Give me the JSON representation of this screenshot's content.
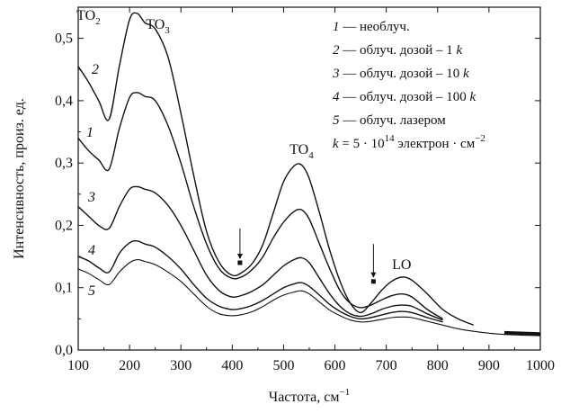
{
  "chart_data": {
    "type": "line",
    "title": "",
    "xlabel": "Частота, см",
    "xlabel_sup": "−1",
    "ylabel": "Интенсивность, произ. ед.",
    "xlim": [
      100,
      1000
    ],
    "ylim": [
      0.0,
      0.55
    ],
    "xticks": [
      100,
      200,
      300,
      400,
      500,
      600,
      700,
      800,
      900,
      1000
    ],
    "xtick_labels": [
      "100",
      "200",
      "300",
      "400",
      "500",
      "600",
      "700",
      "800",
      "900",
      "1000"
    ],
    "yticks": [
      0.0,
      0.1,
      0.2,
      0.3,
      0.4,
      0.5
    ],
    "ytick_labels": [
      "0,0",
      "0,1",
      "0,2",
      "0,3",
      "0,4",
      "0,5"
    ],
    "grid": false,
    "legend_position": "top-right",
    "series": [
      {
        "name": "необлуч.",
        "label": "1",
        "x": [
          100,
          120,
          140,
          160,
          180,
          200,
          215,
          230,
          250,
          275,
          300,
          325,
          350,
          375,
          400,
          420,
          440,
          460,
          480,
          500,
          520,
          535,
          550,
          570,
          590,
          610,
          630,
          650,
          670,
          690,
          710,
          730,
          750,
          780,
          810
        ],
        "y": [
          0.34,
          0.32,
          0.305,
          0.29,
          0.355,
          0.405,
          0.413,
          0.407,
          0.4,
          0.36,
          0.3,
          0.23,
          0.17,
          0.13,
          0.115,
          0.118,
          0.13,
          0.15,
          0.18,
          0.205,
          0.222,
          0.225,
          0.21,
          0.17,
          0.13,
          0.095,
          0.075,
          0.068,
          0.072,
          0.08,
          0.087,
          0.09,
          0.085,
          0.065,
          0.05
        ]
      },
      {
        "name": "облуч. дозой – 1 k",
        "label": "2",
        "x": [
          100,
          120,
          140,
          160,
          180,
          200,
          215,
          230,
          250,
          275,
          300,
          325,
          350,
          375,
          400,
          420,
          440,
          460,
          480,
          500,
          520,
          535,
          550,
          570,
          590,
          610,
          630,
          650,
          670,
          690,
          710,
          730,
          750,
          780,
          810,
          840,
          870
        ],
        "y": [
          0.455,
          0.43,
          0.4,
          0.37,
          0.455,
          0.53,
          0.54,
          0.525,
          0.515,
          0.47,
          0.38,
          0.28,
          0.19,
          0.14,
          0.12,
          0.125,
          0.14,
          0.17,
          0.22,
          0.27,
          0.295,
          0.297,
          0.275,
          0.22,
          0.16,
          0.11,
          0.075,
          0.06,
          0.075,
          0.095,
          0.11,
          0.117,
          0.112,
          0.09,
          0.065,
          0.05,
          0.04
        ]
      },
      {
        "name": "облуч. дозой – 10 k",
        "label": "3",
        "x": [
          100,
          120,
          140,
          160,
          180,
          200,
          215,
          230,
          250,
          275,
          300,
          325,
          350,
          375,
          400,
          420,
          440,
          460,
          480,
          500,
          520,
          535,
          550,
          570,
          590,
          610,
          630,
          650,
          670,
          690,
          710,
          730,
          750,
          780,
          810
        ],
        "y": [
          0.23,
          0.215,
          0.2,
          0.195,
          0.23,
          0.258,
          0.262,
          0.258,
          0.252,
          0.232,
          0.2,
          0.16,
          0.12,
          0.095,
          0.085,
          0.088,
          0.095,
          0.105,
          0.12,
          0.135,
          0.145,
          0.148,
          0.14,
          0.115,
          0.09,
          0.07,
          0.058,
          0.054,
          0.058,
          0.065,
          0.07,
          0.072,
          0.07,
          0.058,
          0.048
        ]
      },
      {
        "name": "облуч. дозой – 100 k",
        "label": "4",
        "x": [
          100,
          120,
          140,
          160,
          180,
          200,
          215,
          230,
          250,
          275,
          300,
          325,
          350,
          375,
          400,
          420,
          440,
          460,
          480,
          500,
          520,
          535,
          550,
          570,
          590,
          610,
          630,
          650,
          670,
          690,
          710,
          730,
          750,
          780,
          810
        ],
        "y": [
          0.15,
          0.143,
          0.132,
          0.125,
          0.155,
          0.172,
          0.175,
          0.17,
          0.165,
          0.15,
          0.13,
          0.105,
          0.083,
          0.07,
          0.065,
          0.067,
          0.072,
          0.08,
          0.09,
          0.1,
          0.106,
          0.108,
          0.102,
          0.088,
          0.073,
          0.062,
          0.054,
          0.05,
          0.052,
          0.056,
          0.06,
          0.062,
          0.06,
          0.052,
          0.045
        ]
      },
      {
        "name": "облуч. лазером",
        "label": "5",
        "x": [
          100,
          120,
          140,
          160,
          180,
          200,
          215,
          230,
          250,
          275,
          300,
          325,
          350,
          375,
          400,
          420,
          440,
          460,
          480,
          500,
          520,
          535,
          550,
          570,
          590,
          610,
          630,
          650,
          670,
          690,
          710,
          730,
          750,
          780,
          810,
          840,
          870,
          900,
          930,
          960,
          1000
        ],
        "y": [
          0.13,
          0.123,
          0.113,
          0.105,
          0.125,
          0.14,
          0.145,
          0.142,
          0.137,
          0.125,
          0.11,
          0.09,
          0.07,
          0.058,
          0.055,
          0.057,
          0.062,
          0.07,
          0.08,
          0.088,
          0.093,
          0.095,
          0.09,
          0.077,
          0.064,
          0.055,
          0.048,
          0.045,
          0.046,
          0.049,
          0.052,
          0.053,
          0.052,
          0.046,
          0.04,
          0.034,
          0.03,
          0.027,
          0.025,
          0.024,
          0.023
        ]
      }
    ],
    "annotations": [
      {
        "text": "TO",
        "sub": "2",
        "x": 120,
        "y": 0.53
      },
      {
        "text": "TO",
        "sub": "3",
        "x": 255,
        "y": 0.515
      },
      {
        "text": "TO",
        "sub": "4",
        "x": 535,
        "y": 0.315
      },
      {
        "text": "LO",
        "x": 730,
        "y": 0.13
      }
    ],
    "arrows": [
      {
        "x": 415,
        "y_top": 0.195,
        "y_bottom": 0.14
      },
      {
        "x": 675,
        "y_top": 0.17,
        "y_bottom": 0.11
      }
    ],
    "legend": {
      "entries": [
        {
          "num": "1",
          "text": "— необлуч."
        },
        {
          "num": "2",
          "text": "— облуч. дозой – 1 ",
          "k": "k"
        },
        {
          "num": "3",
          "text": "— облуч. дозой – 10 ",
          "k": "k"
        },
        {
          "num": "4",
          "text": "— облуч. дозой – 100 ",
          "k": "k"
        },
        {
          "num": "5",
          "text": "— облуч. лазером"
        }
      ],
      "formula_k": "k",
      "formula_main": " = 5 · 10",
      "formula_exp": "14",
      "formula_unit": " электрон · см",
      "formula_unit_exp": "−2"
    }
  }
}
